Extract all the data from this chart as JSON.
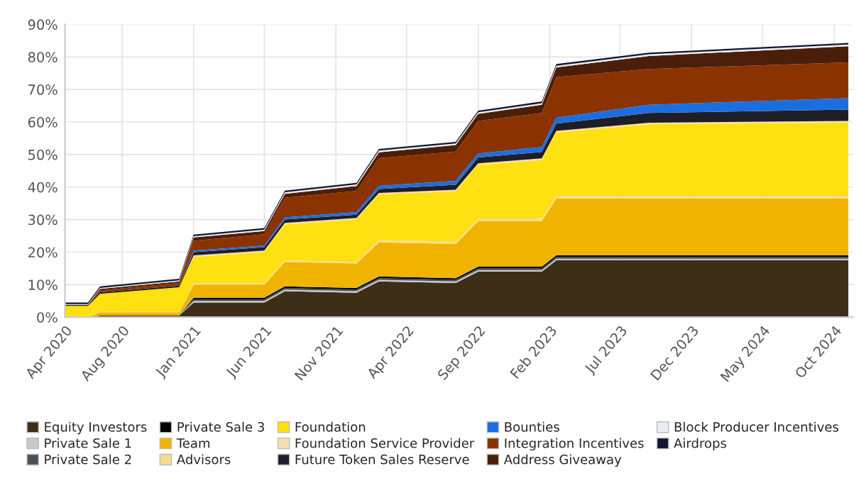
{
  "chart_data": {
    "type": "area",
    "stacked": true,
    "grid": true,
    "legend": "bottom",
    "x": [
      "2020-04-01",
      "2020-05-20",
      "2020-06-15",
      "2020-12-01",
      "2021-01-01",
      "2021-06-01",
      "2021-07-15",
      "2021-12-15",
      "2022-02-01",
      "2022-07-15",
      "2022-09-01",
      "2023-01-15",
      "2023-02-15",
      "2023-09-01",
      "2024-10-31"
    ],
    "xlim": [
      "2020-04-01",
      "2024-11-10"
    ],
    "xticks": [
      {
        "value": "2020-04-01",
        "label": "Apr 2020"
      },
      {
        "value": "2020-08-01",
        "label": "Aug 2020"
      },
      {
        "value": "2021-01-01",
        "label": "Jan 2021"
      },
      {
        "value": "2021-06-01",
        "label": "Jun 2021"
      },
      {
        "value": "2021-11-01",
        "label": "Nov 2021"
      },
      {
        "value": "2022-04-01",
        "label": "Apr 2022"
      },
      {
        "value": "2022-09-01",
        "label": "Sep 2022"
      },
      {
        "value": "2023-02-01",
        "label": "Feb 2023"
      },
      {
        "value": "2023-07-01",
        "label": "Jul 2023"
      },
      {
        "value": "2023-12-01",
        "label": "Dec 2023"
      },
      {
        "value": "2024-05-01",
        "label": "May 2024"
      },
      {
        "value": "2024-10-01",
        "label": "Oct 2024"
      }
    ],
    "ylim": [
      0,
      90
    ],
    "yticks": [
      {
        "value": 0,
        "label": "0%"
      },
      {
        "value": 10,
        "label": "10%"
      },
      {
        "value": 20,
        "label": "20%"
      },
      {
        "value": 30,
        "label": "30%"
      },
      {
        "value": 40,
        "label": "40%"
      },
      {
        "value": 50,
        "label": "50%"
      },
      {
        "value": 60,
        "label": "60%"
      },
      {
        "value": 70,
        "label": "70%"
      },
      {
        "value": 80,
        "label": "80%"
      },
      {
        "value": 90,
        "label": "90%"
      }
    ],
    "series": [
      {
        "name": "Equity Investors",
        "color": "#3d2f17",
        "values": [
          0,
          0,
          0.5,
          0.5,
          4.5,
          4.5,
          8,
          7.5,
          11,
          10.5,
          14,
          14,
          17.5,
          17.5,
          17.5
        ]
      },
      {
        "name": "Private Sale 1",
        "color": "#c8c8c8",
        "values": [
          0,
          0,
          0,
          0,
          0.5,
          0.5,
          0.5,
          0.5,
          0.5,
          0.5,
          0.5,
          0.5,
          0.5,
          0.5,
          0.5
        ]
      },
      {
        "name": "Private Sale 2",
        "color": "#4a5058",
        "values": [
          0,
          0,
          0,
          0,
          0.5,
          0.5,
          0.5,
          0.5,
          0.5,
          0.5,
          0.5,
          0.5,
          0.5,
          0.5,
          0.5
        ]
      },
      {
        "name": "Private Sale 3",
        "color": "#000000",
        "values": [
          0,
          0,
          0,
          0,
          0.5,
          0.5,
          0.5,
          0.5,
          0.5,
          0.5,
          0.5,
          0.5,
          0.5,
          0.5,
          0.5
        ]
      },
      {
        "name": "Team",
        "color": "#f0b400",
        "values": [
          0,
          0,
          1,
          1,
          4,
          4,
          7.5,
          7.5,
          10.5,
          10.5,
          14,
          14,
          17.5,
          17.5,
          17.5
        ]
      },
      {
        "name": "Advisors",
        "color": "#f5dc8a",
        "values": [
          0,
          0,
          0.2,
          0.2,
          0.5,
          0.5,
          0.5,
          0.5,
          0.7,
          0.7,
          0.8,
          0.8,
          0.8,
          0.8,
          0.8
        ]
      },
      {
        "name": "Foundation",
        "color": "#ffe010",
        "values": [
          3.5,
          3.5,
          5.5,
          7.5,
          8,
          9.5,
          11,
          13,
          14,
          15.5,
          16.5,
          18,
          19.5,
          22,
          22.5
        ]
      },
      {
        "name": "Foundation Service Provider",
        "color": "#f8dcb0",
        "values": [
          0,
          0,
          0,
          0,
          0.5,
          0.5,
          0.5,
          0.5,
          0.5,
          0.5,
          0.5,
          0.5,
          0.5,
          0.5,
          0.5
        ]
      },
      {
        "name": "Future Token Sales Reserve",
        "color": "#1e1e28",
        "values": [
          0.3,
          0.3,
          0.5,
          0.5,
          1,
          1,
          1,
          1,
          1.2,
          1.5,
          1.8,
          2,
          2.2,
          3,
          3.5
        ]
      },
      {
        "name": "Bounties",
        "color": "#1a6fe0",
        "values": [
          0,
          0,
          0,
          0,
          0.5,
          0.5,
          0.7,
          0.8,
          1,
          1.2,
          1.2,
          1.5,
          1.8,
          2.5,
          3.5
        ]
      },
      {
        "name": "Integration Incentives",
        "color": "#8b3300",
        "values": [
          0,
          0,
          0.5,
          0.8,
          3,
          3.5,
          6,
          6.5,
          8.5,
          9,
          10,
          10.5,
          12.5,
          11,
          11
        ]
      },
      {
        "name": "Address Giveaway",
        "color": "#4a1e08",
        "values": [
          0,
          0,
          0.5,
          0.5,
          1,
          1,
          1.2,
          1.5,
          1.8,
          2,
          2.2,
          2.5,
          3,
          4,
          5
        ]
      },
      {
        "name": "Block Producer Incentives",
        "color": "#e8eef5",
        "values": [
          0.2,
          0.2,
          0.3,
          0.3,
          0.4,
          0.4,
          0.5,
          0.5,
          0.5,
          0.5,
          0.5,
          0.5,
          0.5,
          0.5,
          0.5
        ]
      },
      {
        "name": "Airdrops",
        "color": "#101830",
        "values": [
          0.5,
          0.5,
          0.5,
          0.5,
          0.5,
          0.5,
          0.5,
          0.5,
          0.5,
          0.5,
          0.5,
          0.5,
          0.5,
          0.5,
          0.5
        ]
      }
    ]
  }
}
